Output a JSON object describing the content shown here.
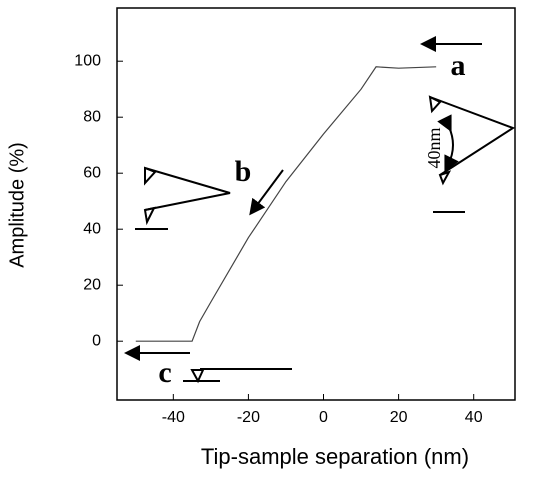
{
  "chart_data": {
    "type": "line",
    "xlabel": "Tip-sample separation (nm)",
    "ylabel": "Amplitude (%)",
    "x": [
      -50,
      -35,
      -33,
      -30,
      -20,
      -10,
      0,
      10,
      14,
      20,
      30
    ],
    "values": [
      0,
      0,
      7,
      14,
      37,
      57,
      74,
      90,
      98,
      97.5,
      98
    ],
    "color": "#444444",
    "xlim": [
      -55,
      51
    ],
    "ylim": [
      -21,
      119
    ],
    "xticks": [
      -40,
      -20,
      0,
      20,
      40
    ],
    "yticks": [
      0,
      20,
      40,
      60,
      80,
      100
    ],
    "annotations": [
      "a",
      "b",
      "c",
      "40nm"
    ]
  }
}
